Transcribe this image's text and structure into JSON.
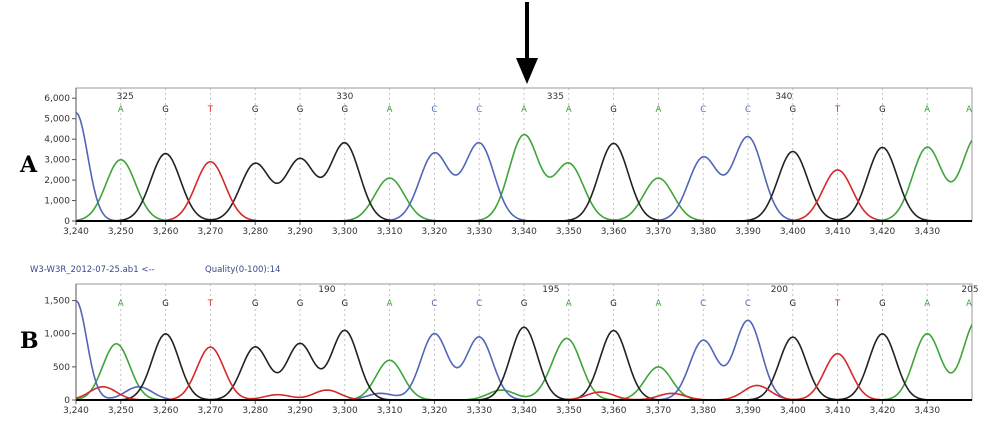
{
  "colors": {
    "A": "#3ea53a",
    "C": "#5266b8",
    "G": "#222222",
    "T": "#d62a2a"
  },
  "chart_data": [
    {
      "type": "line",
      "panel_label": "A",
      "info_left": "",
      "info_right": "",
      "x_ticks": [
        3240,
        3250,
        3260,
        3270,
        3280,
        3290,
        3300,
        3310,
        3320,
        3330,
        3340,
        3350,
        3360,
        3370,
        3380,
        3390,
        3400,
        3410,
        3420,
        3430
      ],
      "x_tick_labels": [
        "3,240",
        "3,250",
        "3,260",
        "3,270",
        "3,280",
        "3,290",
        "3,300",
        "3,310",
        "3,320",
        "3,330",
        "3,340",
        "3,350",
        "3,360",
        "3,370",
        "3,380",
        "3,390",
        "3,400",
        "3,410",
        "3,420",
        "3,430"
      ],
      "xlim": [
        3240,
        3440
      ],
      "y_ticks": [
        0,
        1000,
        2000,
        3000,
        4000,
        5000,
        6000
      ],
      "y_tick_labels": [
        "0",
        "1,000",
        "2,000",
        "3,000",
        "4,000",
        "5,000",
        "6,000"
      ],
      "ylim": [
        0,
        6500
      ],
      "grid": true,
      "position_labels": [
        {
          "label": "325",
          "x": 3251
        },
        {
          "label": "330",
          "x": 3300
        },
        {
          "label": "335",
          "x": 3347
        },
        {
          "label": "340",
          "x": 3398
        }
      ],
      "bases": [
        {
          "base": "A",
          "x": 3250
        },
        {
          "base": "G",
          "x": 3260
        },
        {
          "base": "T",
          "x": 3270
        },
        {
          "base": "G",
          "x": 3280
        },
        {
          "base": "G",
          "x": 3290
        },
        {
          "base": "G",
          "x": 3300
        },
        {
          "base": "A",
          "x": 3310
        },
        {
          "base": "C",
          "x": 3320
        },
        {
          "base": "C",
          "x": 3330
        },
        {
          "base": "A",
          "x": 3340
        },
        {
          "base": "A",
          "x": 3350
        },
        {
          "base": "G",
          "x": 3360
        },
        {
          "base": "A",
          "x": 3370
        },
        {
          "base": "C",
          "x": 3380
        },
        {
          "base": "C",
          "x": 3390
        },
        {
          "base": "G",
          "x": 3400
        },
        {
          "base": "T",
          "x": 3410
        },
        {
          "base": "G",
          "x": 3420
        },
        {
          "base": "A",
          "x": 3430
        },
        {
          "base": "A",
          "x": 3440
        }
      ],
      "series": [
        {
          "base": "A",
          "peaks": [
            [
              3250,
              3000,
              3.3
            ],
            [
              3310,
              2100,
              3.3
            ],
            [
              3340,
              4200,
              3.3
            ],
            [
              3350,
              2800,
              3.3
            ],
            [
              3370,
              2100,
              3.3
            ],
            [
              3430,
              3600,
              3.3
            ],
            [
              3441,
              4100,
              3.3
            ]
          ]
        },
        {
          "base": "C",
          "peaks": [
            [
              3240,
              5300,
              2.6
            ],
            [
              3320,
              3300,
              3.3
            ],
            [
              3330,
              3800,
              3.3
            ],
            [
              3380,
              3100,
              3.3
            ],
            [
              3390,
              4100,
              3.3
            ]
          ]
        },
        {
          "base": "G",
          "peaks": [
            [
              3260,
              3300,
              3.3
            ],
            [
              3280,
              2800,
              3.3
            ],
            [
              3290,
              3000,
              3.3
            ],
            [
              3300,
              3800,
              3.3
            ],
            [
              3360,
              3800,
              3.3
            ],
            [
              3400,
              3400,
              3.3
            ],
            [
              3420,
              3600,
              3.3
            ]
          ]
        },
        {
          "base": "T",
          "peaks": [
            [
              3270,
              2900,
              3.3
            ],
            [
              3410,
              2500,
              3.3
            ]
          ]
        }
      ]
    },
    {
      "type": "line",
      "panel_label": "B",
      "info_left": "W3-W3R_2012-07-25.ab1 <--",
      "info_right": "Quality(0-100):14",
      "x_ticks": [
        3240,
        3250,
        3260,
        3270,
        3280,
        3290,
        3300,
        3310,
        3320,
        3330,
        3340,
        3350,
        3360,
        3370,
        3380,
        3390,
        3400,
        3410,
        3420,
        3430
      ],
      "x_tick_labels": [
        "3,240",
        "3,250",
        "3,260",
        "3,270",
        "3,280",
        "3,290",
        "3,300",
        "3,310",
        "3,320",
        "3,330",
        "3,340",
        "3,350",
        "3,360",
        "3,370",
        "3,380",
        "3,390",
        "3,400",
        "3,410",
        "3,420",
        "3,430"
      ],
      "xlim": [
        3240,
        3440
      ],
      "y_ticks": [
        0,
        500,
        1000,
        1500
      ],
      "y_tick_labels": [
        "0",
        "500",
        "1,000",
        "1,500"
      ],
      "ylim": [
        0,
        1750
      ],
      "grid": true,
      "position_labels": [
        {
          "label": "190",
          "x": 3296
        },
        {
          "label": "195",
          "x": 3346
        },
        {
          "label": "200",
          "x": 3397
        },
        {
          "label": "205",
          "x": 3441
        }
      ],
      "bases": [
        {
          "base": "A",
          "x": 3250
        },
        {
          "base": "G",
          "x": 3260
        },
        {
          "base": "T",
          "x": 3270
        },
        {
          "base": "G",
          "x": 3280
        },
        {
          "base": "G",
          "x": 3290
        },
        {
          "base": "G",
          "x": 3300
        },
        {
          "base": "A",
          "x": 3310
        },
        {
          "base": "C",
          "x": 3320
        },
        {
          "base": "C",
          "x": 3330
        },
        {
          "base": "G",
          "x": 3340
        },
        {
          "base": "A",
          "x": 3350
        },
        {
          "base": "G",
          "x": 3360
        },
        {
          "base": "A",
          "x": 3370
        },
        {
          "base": "C",
          "x": 3380
        },
        {
          "base": "C",
          "x": 3390
        },
        {
          "base": "G",
          "x": 3400
        },
        {
          "base": "T",
          "x": 3410
        },
        {
          "base": "G",
          "x": 3420
        },
        {
          "base": "A",
          "x": 3430
        },
        {
          "base": "A",
          "x": 3440
        }
      ],
      "series": [
        {
          "base": "A",
          "peaks": [
            [
              3249,
              850,
              3.0
            ],
            [
              3310,
              600,
              3.0
            ],
            [
              3350,
              800,
              3.0
            ],
            [
              3370,
              500,
              3.0
            ],
            [
              3430,
              1000,
              3.0
            ],
            [
              3441,
              1200,
              3.0
            ],
            [
              3335,
              150,
              3.0
            ],
            [
              3347,
              200,
              3.0
            ]
          ]
        },
        {
          "base": "C",
          "peaks": [
            [
              3240,
              1500,
              2.4
            ],
            [
              3254,
              200,
              3.0
            ],
            [
              3320,
              1000,
              3.0
            ],
            [
              3330,
              950,
              3.0
            ],
            [
              3380,
              900,
              3.0
            ],
            [
              3390,
              1200,
              3.0
            ],
            [
              3308,
              100,
              3.0
            ]
          ]
        },
        {
          "base": "G",
          "peaks": [
            [
              3260,
              1000,
              3.0
            ],
            [
              3280,
              800,
              3.0
            ],
            [
              3290,
              850,
              3.0
            ],
            [
              3300,
              1050,
              3.0
            ],
            [
              3340,
              1100,
              3.0
            ],
            [
              3360,
              1050,
              3.0
            ],
            [
              3400,
              950,
              3.0
            ],
            [
              3420,
              1000,
              3.0
            ]
          ]
        },
        {
          "base": "T",
          "peaks": [
            [
              3246,
              200,
              3.0
            ],
            [
              3270,
              800,
              3.0
            ],
            [
              3410,
              700,
              3.0
            ],
            [
              3296,
              150,
              3.0
            ],
            [
              3357,
              120,
              3.0
            ],
            [
              3392,
              220,
              3.0
            ],
            [
              3373,
              100,
              3.0
            ],
            [
              3285,
              80,
              3.0
            ]
          ]
        }
      ]
    }
  ]
}
